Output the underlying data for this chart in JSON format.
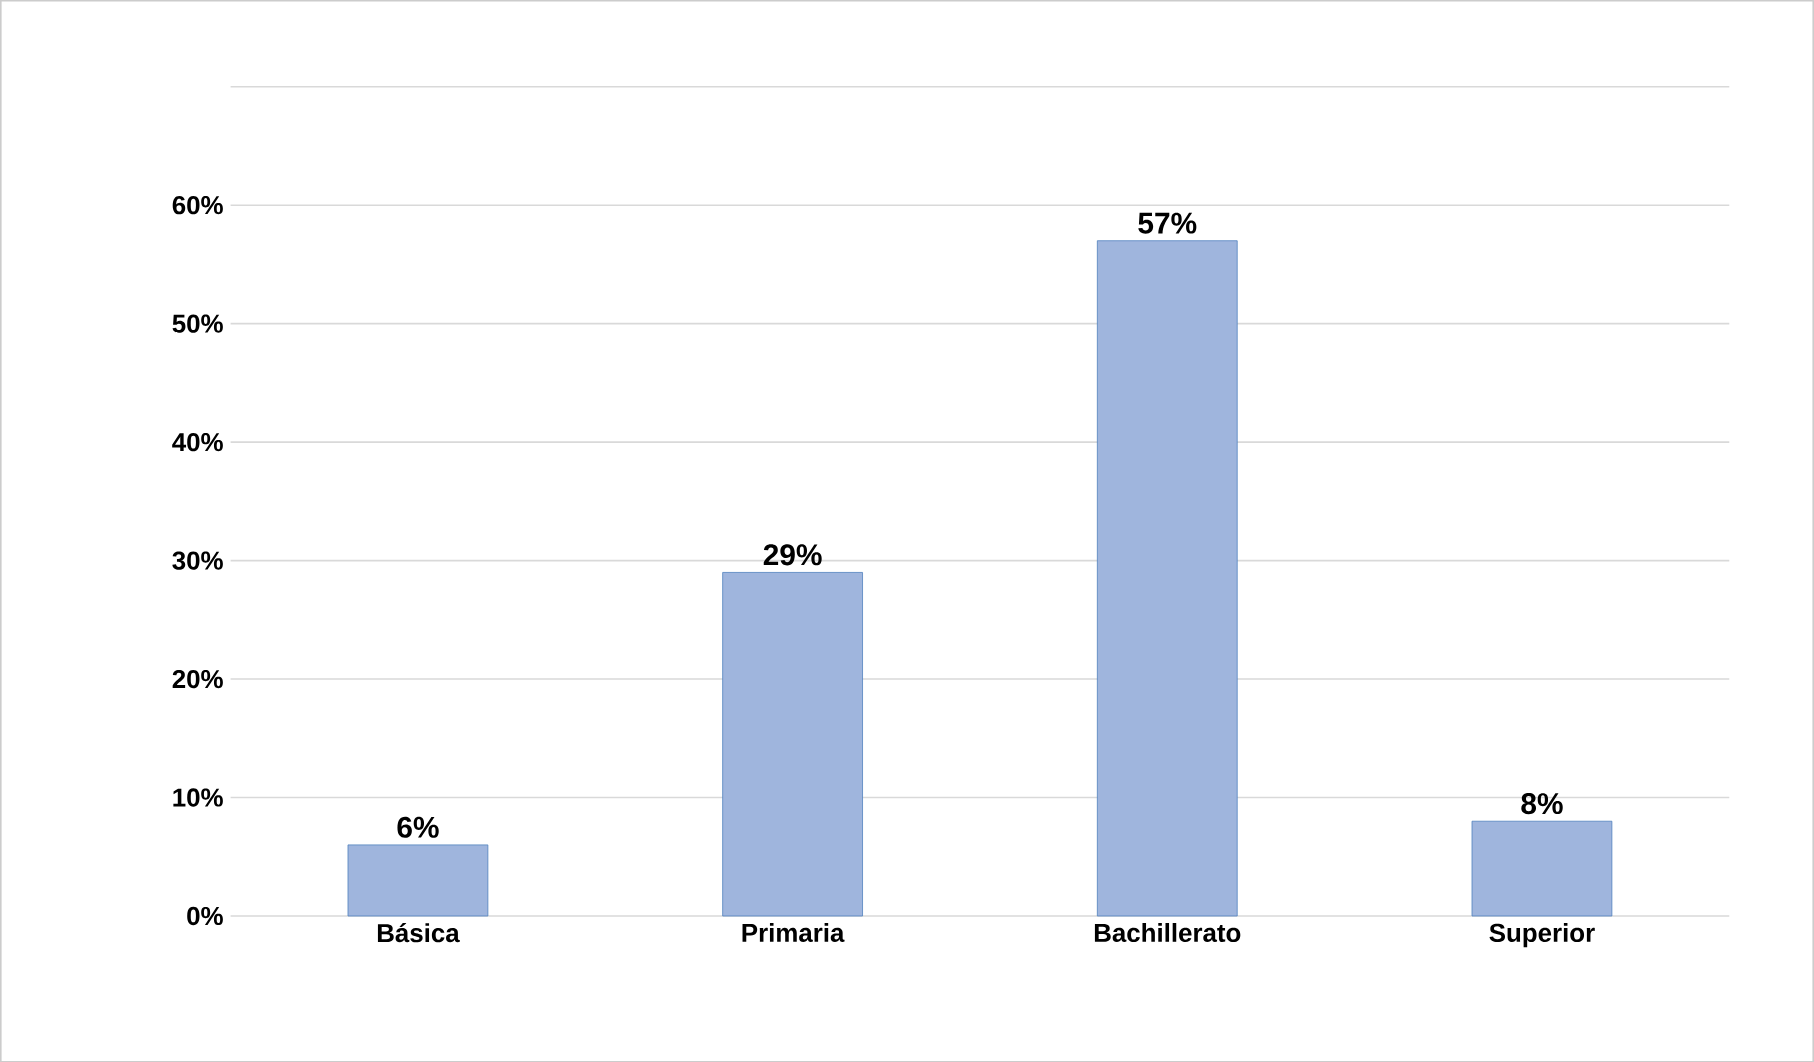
{
  "chart_data": {
    "type": "bar",
    "categories": [
      "Básica",
      "Primaria",
      "Bachillerato",
      "Superior"
    ],
    "values": [
      6,
      29,
      57,
      8
    ],
    "value_labels": [
      "6%",
      "29%",
      "57%",
      "8%"
    ],
    "color": "#9fb5dd",
    "ylim": [
      0,
      70
    ],
    "yticks": [
      {
        "value": 0,
        "label": "0%"
      },
      {
        "value": 10,
        "label": "10%"
      },
      {
        "value": 20,
        "label": "20%"
      },
      {
        "value": 30,
        "label": "30%"
      },
      {
        "value": 40,
        "label": "40%"
      },
      {
        "value": 50,
        "label": "50%"
      },
      {
        "value": 60,
        "label": "60%"
      },
      {
        "value": 70,
        "label": null
      }
    ],
    "grid": "y"
  }
}
